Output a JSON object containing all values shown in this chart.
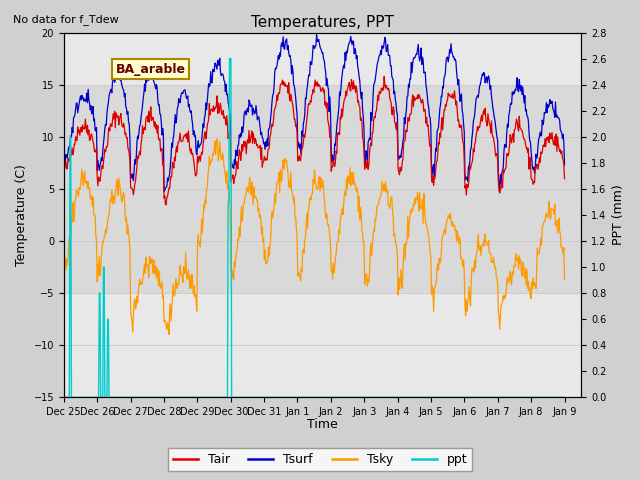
{
  "title": "Temperatures, PPT",
  "subtitle": "No data for f_Tdew",
  "box_label": "BA_arable",
  "xlabel": "Time",
  "ylabel_left": "Temperature (C)",
  "ylabel_right": "PPT (mm)",
  "ylim_left": [
    -15,
    20
  ],
  "ylim_right": [
    0.0,
    2.8
  ],
  "xlim_days": [
    0,
    15.5
  ],
  "tick_labels": [
    "Dec 25",
    "Dec 26",
    "Dec 27",
    "Dec 28",
    "Dec 29",
    "Dec 30",
    "Dec 31",
    "Jan 1",
    "Jan 2",
    "Jan 3",
    "Jan 4",
    "Jan 5",
    "Jan 6",
    "Jan 7",
    "Jan 8",
    "Jan 9"
  ],
  "tick_positions": [
    0,
    1,
    2,
    3,
    4,
    5,
    6,
    7,
    8,
    9,
    10,
    11,
    12,
    13,
    14,
    15
  ],
  "yticks_left": [
    -15,
    -10,
    -5,
    0,
    5,
    10,
    15,
    20
  ],
  "yticks_right": [
    0.0,
    0.2,
    0.4,
    0.6,
    0.8,
    1.0,
    1.2,
    1.4,
    1.6,
    1.8,
    2.0,
    2.2,
    2.4,
    2.6,
    2.8
  ],
  "grid_color": "#cccccc",
  "tair_color": "#dd0000",
  "tsurf_color": "#0000cc",
  "tsky_color": "#ff9900",
  "ppt_color": "#00cccc",
  "legend_entries": [
    "Tair",
    "Tsurf",
    "Tsky",
    "ppt"
  ],
  "box_label_color": "#660000",
  "box_label_bg": "#ffffcc",
  "box_label_border": "#aa8800"
}
